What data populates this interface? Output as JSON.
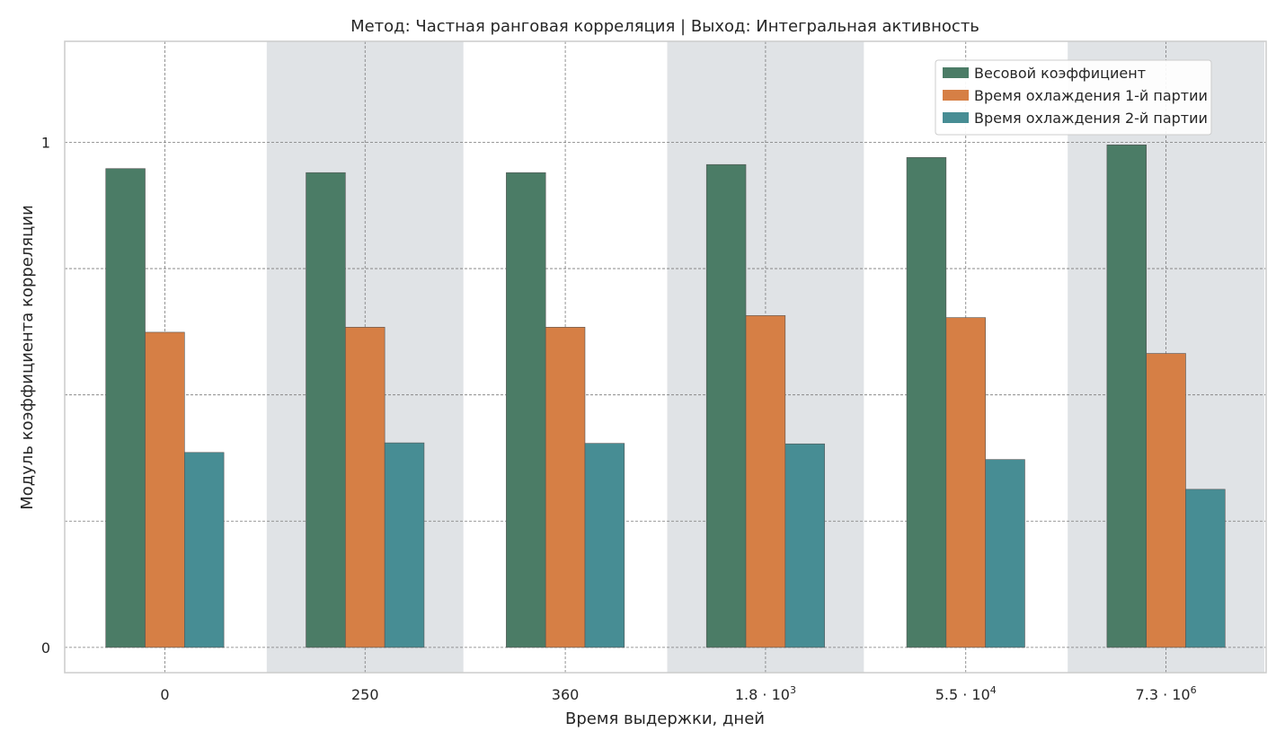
{
  "chart_data": {
    "type": "bar",
    "title": "Метод: Частная ранговая корреляция | Выход: Интегральная активность",
    "xlabel": "Время выдержки, дней",
    "ylabel": "Модуль коэффициента корреляции",
    "categories": [
      {
        "base": "0",
        "exp": ""
      },
      {
        "base": "250",
        "exp": ""
      },
      {
        "base": "360",
        "exp": ""
      },
      {
        "base": "1.8 · 10",
        "exp": "3"
      },
      {
        "base": "5.5 · 10",
        "exp": "4"
      },
      {
        "base": "7.3 · 10",
        "exp": "6"
      }
    ],
    "series": [
      {
        "name": "Весовой коэффициент",
        "color": "#4b7c66",
        "values": [
          0.948,
          0.94,
          0.94,
          0.956,
          0.97,
          0.995
        ]
      },
      {
        "name": "Время охлаждения 1-й партии",
        "color": "#d67f45",
        "values": [
          0.624,
          0.634,
          0.634,
          0.657,
          0.653,
          0.582
        ]
      },
      {
        "name": "Время охлаждения 2-й партии",
        "color": "#478d94",
        "values": [
          0.386,
          0.405,
          0.404,
          0.403,
          0.372,
          0.313
        ]
      }
    ],
    "ylim": [
      -0.05,
      1.2
    ],
    "yticks": [
      {
        "value": 0,
        "label": "0"
      },
      {
        "value": 0.25,
        "label": ""
      },
      {
        "value": 0.5,
        "label": ""
      },
      {
        "value": 0.75,
        "label": ""
      },
      {
        "value": 1,
        "label": "1"
      }
    ],
    "shaded_bands": [
      1,
      3,
      5
    ],
    "band_color": "#e0e3e6",
    "grid": true,
    "legend_position": "top-right"
  }
}
